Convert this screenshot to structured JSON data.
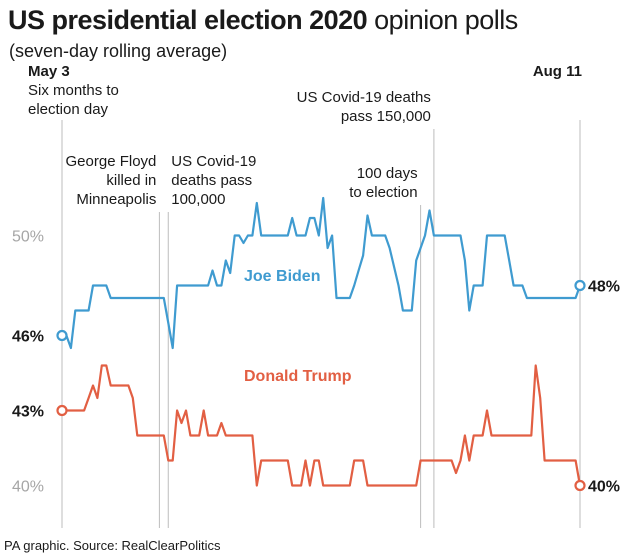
{
  "header": {
    "title_bold": "US presidential election 2020",
    "title_rest": " opinion polls",
    "subtitle": "(seven-day rolling average)"
  },
  "source": "PA graphic. Source: RealClearPolitics",
  "annotations": [
    {
      "day": 0,
      "lines": [
        "May 3",
        "Six months to",
        "election day"
      ],
      "bold_first": true,
      "align": "start"
    },
    {
      "day": 22,
      "lines": [
        "George Floyd",
        "killed in",
        "Minneapolis"
      ],
      "bold_first": false,
      "align": "end"
    },
    {
      "day": 24,
      "lines": [
        "US Covid-19",
        "deaths pass",
        "100,000"
      ],
      "bold_first": false,
      "align": "start"
    },
    {
      "day": 81,
      "lines": [
        "100 days",
        "to election"
      ],
      "bold_first": false,
      "align": "end"
    },
    {
      "day": 84,
      "lines": [
        "US Covid-19 deaths",
        "pass 150,000"
      ],
      "bold_first": false,
      "align": "end"
    },
    {
      "day": 100,
      "lines": [
        "Aug 11"
      ],
      "bold_first": true,
      "align": "end"
    }
  ],
  "chart_data": {
    "type": "line",
    "title": "US presidential election 2020 opinion polls",
    "subtitle": "(seven-day rolling average)",
    "x_start": "May 3",
    "x_end": "Aug 11",
    "x_unit": "days since May 3",
    "ylim": [
      38.5,
      53.5
    ],
    "y_ticks": [
      {
        "value": 50,
        "label": "50%",
        "style": "grey"
      },
      {
        "value": 46,
        "label": "46%",
        "style": "black"
      },
      {
        "value": 43,
        "label": "43%",
        "style": "black"
      },
      {
        "value": 40,
        "label": "40%",
        "style": "grey"
      }
    ],
    "series": [
      {
        "name": "Joe Biden",
        "color": "#3f9bd0",
        "end_label": "48%",
        "points": [
          [
            0,
            46
          ],
          [
            1,
            46
          ],
          [
            2,
            45.5
          ],
          [
            3,
            47
          ],
          [
            6,
            47
          ],
          [
            7,
            48
          ],
          [
            10,
            48
          ],
          [
            11,
            47.5
          ],
          [
            23,
            47.5
          ],
          [
            24,
            46.5
          ],
          [
            25,
            45.5
          ],
          [
            26,
            48
          ],
          [
            33,
            48
          ],
          [
            34,
            48.6
          ],
          [
            35,
            48
          ],
          [
            36,
            48
          ],
          [
            37,
            49
          ],
          [
            38,
            48.5
          ],
          [
            39,
            50
          ],
          [
            40,
            50
          ],
          [
            41,
            49.7
          ],
          [
            42,
            50
          ],
          [
            43,
            50
          ],
          [
            44,
            51.3
          ],
          [
            45,
            50
          ],
          [
            51,
            50
          ],
          [
            52,
            50.7
          ],
          [
            53,
            50
          ],
          [
            55,
            50
          ],
          [
            56,
            50.7
          ],
          [
            57,
            50.7
          ],
          [
            58,
            50
          ],
          [
            59,
            51.5
          ],
          [
            60,
            49.5
          ],
          [
            61,
            50
          ],
          [
            62,
            47.5
          ],
          [
            65,
            47.5
          ],
          [
            66,
            48
          ],
          [
            67,
            48.6
          ],
          [
            68,
            49.2
          ],
          [
            69,
            50.8
          ],
          [
            70,
            50
          ],
          [
            73,
            50
          ],
          [
            74,
            49.5
          ],
          [
            76,
            48
          ],
          [
            77,
            47
          ],
          [
            79,
            47
          ],
          [
            80,
            49
          ],
          [
            81,
            49.5
          ],
          [
            82,
            50
          ],
          [
            83,
            51
          ],
          [
            84,
            50
          ],
          [
            90,
            50
          ],
          [
            91,
            49
          ],
          [
            92,
            47
          ],
          [
            93,
            48
          ],
          [
            95,
            48
          ],
          [
            96,
            50
          ],
          [
            99,
            50
          ],
          [
            100,
            50
          ],
          [
            101,
            49
          ],
          [
            102,
            48
          ],
          [
            104,
            48
          ],
          [
            105,
            47.5
          ],
          [
            116,
            47.5
          ],
          [
            117,
            48
          ]
        ]
      },
      {
        "name": "Donald Trump",
        "color": "#e25f43",
        "end_label": "40%",
        "points": [
          [
            0,
            43
          ],
          [
            1,
            43
          ],
          [
            5,
            43
          ],
          [
            6,
            43.5
          ],
          [
            7,
            44
          ],
          [
            8,
            43.5
          ],
          [
            9,
            44.8
          ],
          [
            10,
            44.8
          ],
          [
            11,
            44
          ],
          [
            15,
            44
          ],
          [
            16,
            43.5
          ],
          [
            17,
            42
          ],
          [
            23,
            42
          ],
          [
            24,
            41
          ],
          [
            25,
            41
          ],
          [
            26,
            43
          ],
          [
            27,
            42.5
          ],
          [
            28,
            43
          ],
          [
            29,
            42
          ],
          [
            31,
            42
          ],
          [
            32,
            43
          ],
          [
            33,
            42
          ],
          [
            35,
            42
          ],
          [
            36,
            42.5
          ],
          [
            37,
            42
          ],
          [
            43,
            42
          ],
          [
            44,
            40
          ],
          [
            45,
            41
          ],
          [
            51,
            41
          ],
          [
            52,
            40
          ],
          [
            54,
            40
          ],
          [
            55,
            41
          ],
          [
            56,
            40
          ],
          [
            57,
            41
          ],
          [
            58,
            41
          ],
          [
            59,
            40
          ],
          [
            65,
            40
          ],
          [
            66,
            41
          ],
          [
            68,
            41
          ],
          [
            69,
            40
          ],
          [
            80,
            40
          ],
          [
            81,
            41
          ],
          [
            88,
            41
          ],
          [
            89,
            40.5
          ],
          [
            90,
            41
          ],
          [
            91,
            42
          ],
          [
            92,
            41
          ],
          [
            93,
            42
          ],
          [
            95,
            42
          ],
          [
            96,
            43
          ],
          [
            97,
            42
          ],
          [
            99,
            42
          ],
          [
            100,
            42
          ],
          [
            101,
            42
          ],
          [
            102,
            42
          ],
          [
            103,
            42
          ],
          [
            104,
            42
          ],
          [
            106,
            42
          ],
          [
            107,
            44.8
          ],
          [
            108,
            43.5
          ],
          [
            109,
            41
          ],
          [
            113,
            41
          ],
          [
            114,
            41
          ],
          [
            116,
            41
          ],
          [
            117,
            40
          ]
        ]
      }
    ]
  }
}
